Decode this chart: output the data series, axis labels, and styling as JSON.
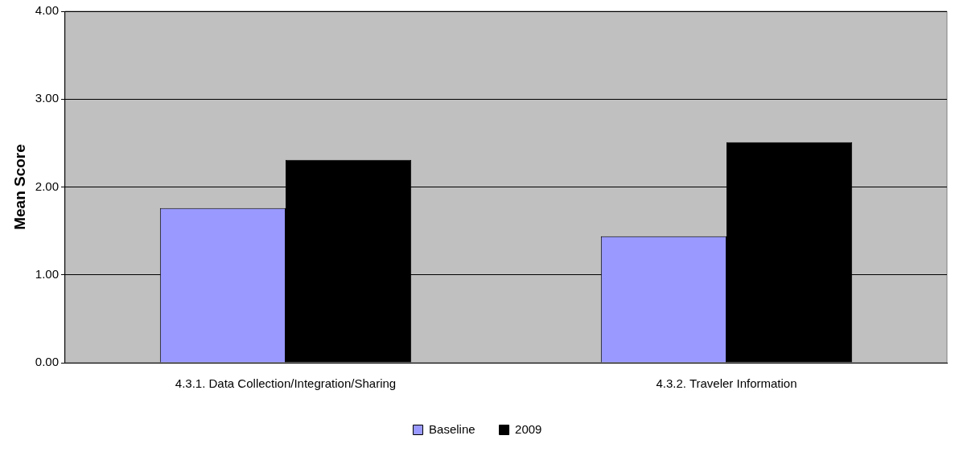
{
  "chart_data": {
    "type": "bar",
    "ylabel": "Mean Score",
    "categories": [
      "4.3.1. Data Collection/Integration/Sharing",
      "4.3.2. Traveler Information"
    ],
    "series": [
      {
        "name": "Baseline",
        "color": "#9999ff",
        "values": [
          1.76,
          1.44
        ]
      },
      {
        "name": "2009",
        "color": "#000000",
        "values": [
          2.31,
          2.51
        ]
      }
    ],
    "ylim": [
      0,
      4
    ],
    "yticks": [
      {
        "value": 0,
        "label": "0.00"
      },
      {
        "value": 1,
        "label": "1.00"
      },
      {
        "value": 2,
        "label": "2.00"
      },
      {
        "value": 3,
        "label": "3.00"
      },
      {
        "value": 4,
        "label": "4.00"
      }
    ],
    "grid": "y",
    "legend": "bottom"
  }
}
